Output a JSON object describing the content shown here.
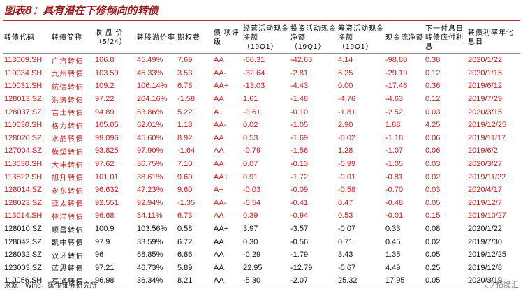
{
  "title": "图表8：具有潜在下修倾向的转债",
  "headers": [
    "转债代码",
    "转债简称",
    "收 盘 价（5/24）",
    "转股溢价率",
    "期权费",
    "债 项评级",
    "经营活动现金净额（19Q1）",
    "投资活动现金净额（19Q1）",
    "筹资活动现金净额（19Q1）",
    "现金流净额",
    "下一付息日转债应付利息",
    "转债利率年化息日"
  ],
  "rows": [
    {
      "color": "red",
      "cells": [
        "113009.SH",
        "广汽转债",
        "106.8",
        "45.49%",
        "7.69",
        "AA",
        "-60.31",
        "-42.63",
        "4.14",
        "-98.80",
        "0.38",
        "2020/1/22"
      ]
    },
    {
      "color": "red",
      "cells": [
        "110034.SH",
        "九州转债",
        "103.59",
        "45.33%",
        "3.53",
        "AA-",
        "-32.64",
        "-2.81",
        "6.25",
        "-29.19",
        "0.12",
        "2020/1/15"
      ]
    },
    {
      "color": "red",
      "cells": [
        "110031.SH",
        "航信转债",
        "109.2",
        "106.14%",
        "6.78",
        "AA+",
        "-13.03",
        "-4.43",
        "0.00",
        "-17.46",
        "0.36",
        "2019/6/12"
      ]
    },
    {
      "color": "red",
      "cells": [
        "128013.SZ",
        "洪涛转债",
        "97.22",
        "204.16%",
        "-1.58",
        "AA",
        "1.61",
        "-1.48",
        "-4.76",
        "-4.63",
        "0.12",
        "2019/7/29"
      ]
    },
    {
      "color": "red",
      "cells": [
        "128037.SZ",
        "岩土转债",
        "94.89",
        "63.86%",
        "5.22",
        "A+",
        "-0.61",
        "-0.10",
        "-1.81",
        "-2.52",
        "0.03",
        "2020/3/15"
      ]
    },
    {
      "color": "red",
      "cells": [
        "110030.SH",
        "格力转债",
        "105.05",
        "62.01%",
        "1.18",
        "AA-",
        "0.02",
        "-1.05",
        "2.90",
        "1.88",
        "4.25",
        "2019/12/25"
      ]
    },
    {
      "color": "red",
      "cells": [
        "128020.SZ",
        "水晶转债",
        "99.096",
        "45.60%",
        "8.92",
        "AA",
        "0.53",
        "-1.69",
        "-0.02",
        "-1.18",
        "0.06",
        "2019/11/17"
      ]
    },
    {
      "color": "red",
      "cells": [
        "127004.SZ",
        "模塑转债",
        "93.825",
        "97.90%",
        "-1.64",
        "AA",
        "-0.79",
        "-1.56",
        "1.28",
        "-1.07",
        "0.06",
        "2019/6/2"
      ]
    },
    {
      "color": "red",
      "cells": [
        "113530.SH",
        "大丰转债",
        "97.62",
        "36.75%",
        "7.10",
        "AA",
        "0.07",
        "-0.13",
        "-0.99",
        "-1.05",
        "0.03",
        "2020/3/27"
      ]
    },
    {
      "color": "red",
      "cells": [
        "113522.SH",
        "旭升转债",
        "101.01",
        "38.61%",
        "9.60",
        "AA+",
        "0.91",
        "-1.72",
        "-0.01",
        "-0.81",
        "0.02",
        "2019/11/22"
      ]
    },
    {
      "color": "red",
      "cells": [
        "128014.SZ",
        "永东转债",
        "96.632",
        "47.23%",
        "9.60",
        "A+",
        "-0.03",
        "-0.09",
        "-0.58",
        "-0.70",
        "0.03",
        "2020/4/17"
      ]
    },
    {
      "color": "red",
      "cells": [
        "128023.SZ",
        "亚太转债",
        "92.551",
        "92.94%",
        "-1.35",
        "AA-",
        "-0.54",
        "-0.41",
        "0.47",
        "-0.48",
        "0.05",
        "2019/12/7"
      ]
    },
    {
      "color": "red",
      "cells": [
        "113014.SH",
        "林洋转债",
        "96.68",
        "84.11%",
        "6.73",
        "AA",
        "0.39",
        "-0.94",
        "0.53",
        "-0.01",
        "0.15",
        "2019/10/27"
      ]
    },
    {
      "color": "black",
      "cells": [
        "128010.SZ",
        "顺昌转债",
        "100.9",
        "103.56%",
        "0.58",
        "AA+",
        "3.97",
        "-3.57",
        "-0.07",
        "0.33",
        "0.08",
        "2020/1/22"
      ]
    },
    {
      "color": "black",
      "cells": [
        "128042.SZ",
        "凯中转债",
        "97.9",
        "33.59%",
        "6.72",
        "AA",
        "0.30",
        "-0.56",
        "0.71",
        "0.45",
        "0.02",
        "2019/7/30"
      ]
    },
    {
      "color": "black",
      "cells": [
        "128032.SZ",
        "双环转债",
        "96",
        "68.85%",
        "6.86",
        "AA",
        "-0.29",
        "-1.79",
        "3.43",
        "1.35",
        "0.05",
        "2019/12/25"
      ]
    },
    {
      "color": "black",
      "cells": [
        "123003.SZ",
        "蓝思转债",
        "97.21",
        "46.73%",
        "5.89",
        "AA",
        "22.95",
        "-12.79",
        "-5.67",
        "4.49",
        "0.25",
        "2019/12/8"
      ]
    },
    {
      "color": "black",
      "cells": [
        "110056.SH",
        "亨通转债",
        "96.98",
        "36.34%",
        "8.21",
        "AA",
        "-5.30",
        "-2.07",
        "25.32",
        "17.95",
        "0.05",
        "2020/3/19"
      ]
    }
  ],
  "source": "来源：Wind，国金证券研究所",
  "watermark": "格隆汇"
}
